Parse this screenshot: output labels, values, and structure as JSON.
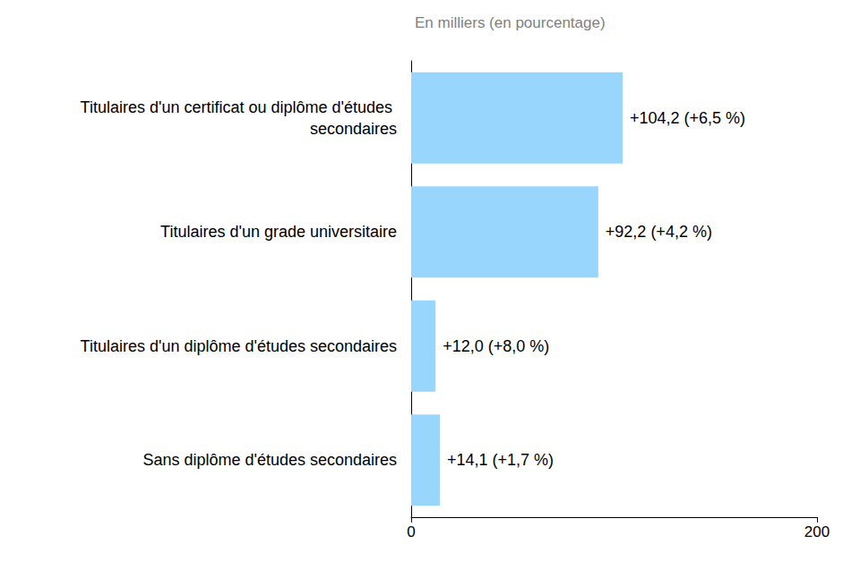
{
  "chart_data": {
    "type": "bar",
    "orientation": "horizontal",
    "subtitle": "En milliers (en pourcentage)",
    "categories": [
      "Titulaires d'un certificat ou diplôme d'études secondaires",
      "Titulaires d'un grade universitaire",
      "Titulaires d'un diplôme d'études secondaires",
      "Sans diplôme d'études secondaires"
    ],
    "values": [
      104.2,
      92.2,
      12.0,
      14.1
    ],
    "value_labels": [
      "+104,2 (+6,5 %)",
      "+92,2 (+4,2 %)",
      "+12,0 (+8,0 %)",
      "+14,1 (+1,7 %)"
    ],
    "data_labels": true,
    "color": "#99d6fd",
    "xlim": [
      0,
      200
    ],
    "xticks": [
      0,
      200
    ],
    "grid": false
  }
}
